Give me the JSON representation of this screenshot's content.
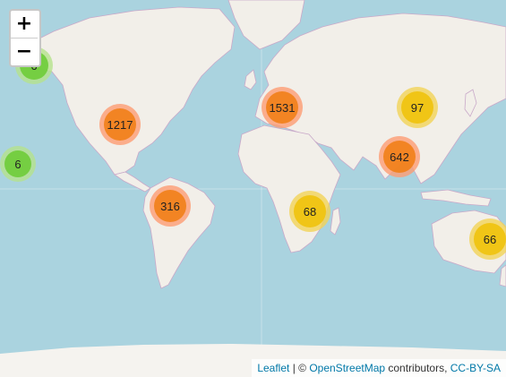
{
  "zoom": {
    "in_label": "+",
    "out_label": "−"
  },
  "clusters": [
    {
      "id": "alaska",
      "count": "6",
      "size": "small"
    },
    {
      "id": "hawaii",
      "count": "6",
      "size": "small"
    },
    {
      "id": "north-america",
      "count": "1217",
      "size": "large"
    },
    {
      "id": "south-america",
      "count": "316",
      "size": "large"
    },
    {
      "id": "europe",
      "count": "1531",
      "size": "large"
    },
    {
      "id": "china",
      "count": "97",
      "size": "medium"
    },
    {
      "id": "south-asia",
      "count": "642",
      "size": "large"
    },
    {
      "id": "southern-africa",
      "count": "68",
      "size": "medium"
    },
    {
      "id": "australia",
      "count": "66",
      "size": "medium"
    }
  ],
  "cluster_colors": {
    "small": {
      "halo": "#b5e28c",
      "core": "#6ecc39"
    },
    "medium": {
      "halo": "#f1d357",
      "core": "#f0c20c"
    },
    "large": {
      "halo": "#fd9c73",
      "core": "#f18017"
    }
  },
  "attribution": {
    "leaflet": "Leaflet",
    "separator": " | © ",
    "osm": "OpenStreetMap",
    "contributors": " contributors, ",
    "license": "CC-BY-SA"
  }
}
